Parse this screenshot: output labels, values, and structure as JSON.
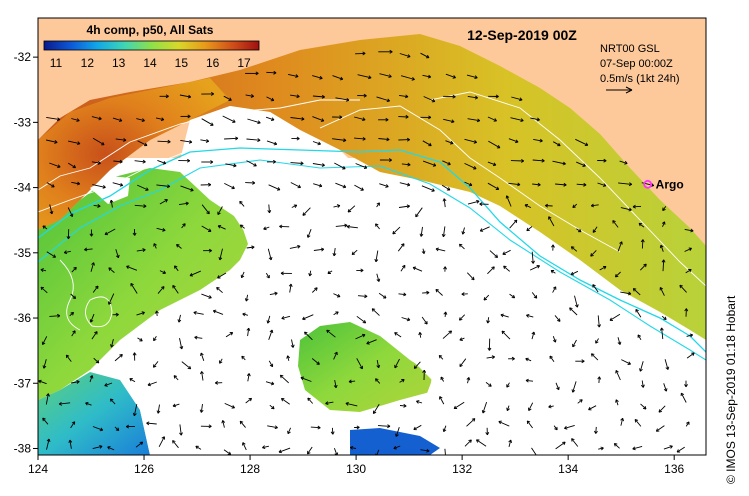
{
  "colorbar": {
    "title": "4h comp, p50, All Sats",
    "ticks": [
      11,
      12,
      13,
      14,
      15,
      16,
      17
    ],
    "colors": [
      "#0a1a8c",
      "#0d58d8",
      "#11a8e8",
      "#3fd6b4",
      "#8ee04a",
      "#d8d82a",
      "#e89a1a",
      "#d0501a",
      "#a01010"
    ]
  },
  "date_title": "12-Sep-2019 00Z",
  "current_info": {
    "line1": "NRT00 GSL",
    "line2": "07-Sep 00:00Z",
    "line3": "0.5m/s (1kt 24h)"
  },
  "marker": {
    "label": "Argo",
    "lon": 135.5,
    "lat": -33.95,
    "color": "#ff33ff"
  },
  "axes": {
    "x_ticks": [
      124,
      126,
      128,
      130,
      132,
      134,
      136
    ],
    "y_ticks": [
      -32,
      -33,
      -34,
      -35,
      -36,
      -37,
      -38
    ],
    "xlim": [
      124,
      136.6
    ],
    "ylim": [
      -38.1,
      -31.4
    ]
  },
  "credit": "© IMOS 13-Sep-2019 01:18 Hobart",
  "colors": {
    "land": "#fdc89a",
    "cloud": "#ffffff",
    "contour": "#ffffff",
    "isobath": "#22d8e8",
    "vector": "#000000"
  }
}
